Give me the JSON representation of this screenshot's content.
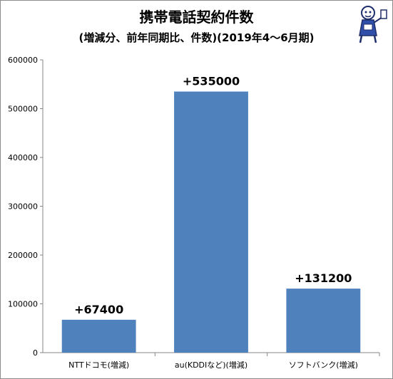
{
  "chart_data": {
    "type": "bar",
    "title": "携帯電話契約件数",
    "subtitle": "(増減分、前年同期比、件数)(2019年4～6月期)",
    "categories": [
      "NTTドコモ(増減)",
      "au(KDDIなど)(増減)",
      "ソフトバンク(増減)"
    ],
    "values": [
      67400,
      535000,
      131200
    ],
    "data_labels": [
      "+67400",
      "+535000",
      "+131200"
    ],
    "yticks": [
      0,
      100000,
      200000,
      300000,
      400000,
      500000,
      600000
    ],
    "ylim": [
      0,
      600000
    ],
    "bar_color": "#4f81bd",
    "grid": false,
    "legend": "none"
  }
}
